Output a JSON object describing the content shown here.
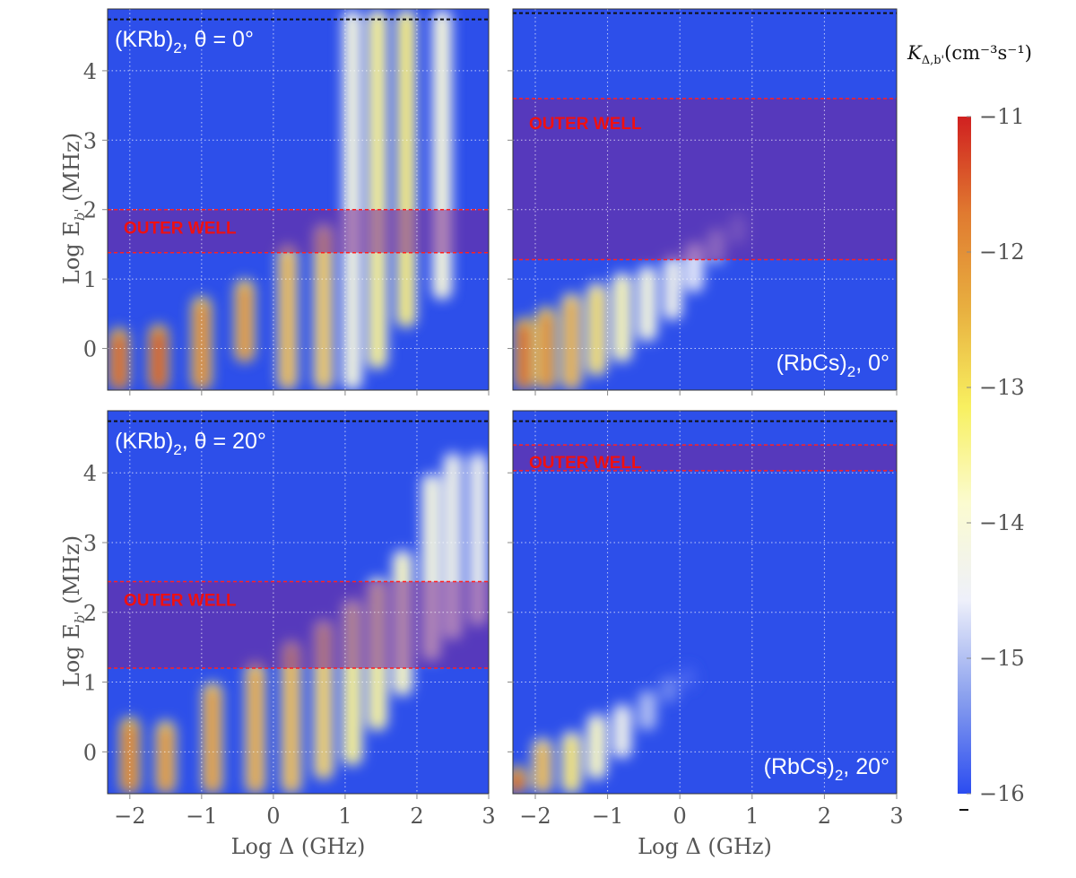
{
  "chart_data": {
    "type": "heatmap",
    "xlabel": "Log Δ (GHz)",
    "ylabel_prefix": "Log E",
    "ylabel_sub": "b'",
    "ylabel_suffix": " (MHz)",
    "xlim": [
      -2.31,
      3
    ],
    "ylim": [
      -0.6,
      4.89
    ],
    "x_ticks": [
      "-2",
      "-1",
      "0",
      "1",
      "2",
      "3"
    ],
    "x_tick_values": [
      -2,
      -1,
      0,
      1,
      2,
      3
    ],
    "y_ticks": [
      "0",
      "1",
      "2",
      "3",
      "4"
    ],
    "y_tick_values": [
      0,
      1,
      2,
      3,
      4
    ],
    "outer_well_label": "OUTER WELL",
    "colorbar": {
      "title_main": "K",
      "title_sub": "Δ,b'",
      "title_unit": "(cm⁻³s⁻¹)",
      "range": [
        -16,
        -11
      ],
      "ticks": [
        "−11",
        "−12",
        "−13",
        "−14",
        "−15",
        "−16"
      ],
      "tick_values": [
        -11,
        -12,
        -13,
        -14,
        -15,
        -16
      ],
      "colors": [
        "#2b4cf0",
        "#8aa0ee",
        "#eef0fa",
        "#fbfbd0",
        "#f8f060",
        "#e8b040",
        "#e07a30",
        "#d02020"
      ]
    },
    "background_color": "#2d4fea",
    "panels": [
      {
        "id": "krb-0",
        "label_mol": "(KRb)",
        "label_sub": "2",
        "label_rest": ", θ = 0°",
        "label_pos": "top-left",
        "threshold_line": 4.74,
        "outer_well": [
          1.38,
          2.0
        ],
        "features": [
          {
            "x": -2.15,
            "ymin": -0.6,
            "ymax": 0.3,
            "value": -11.3
          },
          {
            "x": -1.6,
            "ymin": -0.6,
            "ymax": 0.35,
            "value": -11.2
          },
          {
            "x": -1.0,
            "ymin": -0.6,
            "ymax": 0.75,
            "value": -11.7
          },
          {
            "x": -0.4,
            "ymin": -0.2,
            "ymax": 1.0,
            "value": -11.9
          },
          {
            "x": 0.2,
            "ymin": -0.6,
            "ymax": 1.5,
            "value": -12.4
          },
          {
            "x": 0.7,
            "ymin": -0.6,
            "ymax": 1.8,
            "value": -12.6
          },
          {
            "x": 1.1,
            "ymin": -0.6,
            "ymax": 4.89,
            "value": -14.0
          },
          {
            "x": 1.45,
            "ymin": -0.3,
            "ymax": 4.89,
            "value": -13.3
          },
          {
            "x": 1.85,
            "ymin": 0.3,
            "ymax": 4.89,
            "value": -13.1
          },
          {
            "x": 2.35,
            "ymin": 0.7,
            "ymax": 4.89,
            "value": -13.9
          }
        ]
      },
      {
        "id": "rbcs-0",
        "label_mol": "(RbCs)",
        "label_sub": "2",
        "label_rest": ", 0°",
        "label_pos": "bottom-right",
        "threshold_line": 4.83,
        "outer_well": [
          1.28,
          3.6
        ],
        "features": [
          {
            "x": -2.15,
            "ymin": -0.6,
            "ymax": 0.45,
            "value": -11.4
          },
          {
            "x": -1.85,
            "ymin": -0.6,
            "ymax": 0.6,
            "value": -11.8
          },
          {
            "x": -1.5,
            "ymin": -0.6,
            "ymax": 0.8,
            "value": -12.3
          },
          {
            "x": -1.15,
            "ymin": -0.4,
            "ymax": 0.95,
            "value": -12.9
          },
          {
            "x": -0.8,
            "ymin": -0.2,
            "ymax": 1.1,
            "value": -13.6
          },
          {
            "x": -0.45,
            "ymin": 0.1,
            "ymax": 1.2,
            "value": -14.0
          },
          {
            "x": -0.1,
            "ymin": 0.4,
            "ymax": 1.35,
            "value": -14.3
          },
          {
            "x": 0.2,
            "ymin": 0.8,
            "ymax": 1.55,
            "value": -14.6
          },
          {
            "x": 0.5,
            "ymin": 1.2,
            "ymax": 1.75,
            "value": -15.1
          },
          {
            "x": 0.8,
            "ymin": 1.5,
            "ymax": 1.95,
            "value": -15.5
          }
        ]
      },
      {
        "id": "krb-20",
        "label_mol": "(KRb)",
        "label_sub": "2",
        "label_rest": ", θ = 20°",
        "label_pos": "top-left",
        "threshold_line": 4.74,
        "outer_well": [
          1.2,
          2.44
        ],
        "features": [
          {
            "x": -2.0,
            "ymin": -0.6,
            "ymax": 0.5,
            "value": -11.6
          },
          {
            "x": -1.5,
            "ymin": -0.6,
            "ymax": 0.45,
            "value": -11.9
          },
          {
            "x": -0.85,
            "ymin": -0.6,
            "ymax": 1.0,
            "value": -12.0
          },
          {
            "x": -0.25,
            "ymin": -0.6,
            "ymax": 1.3,
            "value": -12.2
          },
          {
            "x": 0.25,
            "ymin": -0.6,
            "ymax": 1.6,
            "value": -12.4
          },
          {
            "x": 0.7,
            "ymin": -0.4,
            "ymax": 1.9,
            "value": -12.7
          },
          {
            "x": 1.1,
            "ymin": -0.2,
            "ymax": 2.2,
            "value": -13.3
          },
          {
            "x": 1.45,
            "ymin": 0.3,
            "ymax": 2.5,
            "value": -13.4
          },
          {
            "x": 1.8,
            "ymin": 0.8,
            "ymax": 2.9,
            "value": -13.7
          },
          {
            "x": 2.2,
            "ymin": 1.3,
            "ymax": 4.0,
            "value": -14.0
          },
          {
            "x": 2.5,
            "ymin": 1.6,
            "ymax": 4.3,
            "value": -14.2
          },
          {
            "x": 2.85,
            "ymin": 1.8,
            "ymax": 4.3,
            "value": -14.3
          }
        ]
      },
      {
        "id": "rbcs-20",
        "label_mol": "(RbCs)",
        "label_sub": "2",
        "label_rest": ", 20°",
        "label_pos": "bottom-right",
        "threshold_line": 4.74,
        "outer_well": [
          4.03,
          4.4
        ],
        "features": [
          {
            "x": -2.25,
            "ymin": -0.6,
            "ymax": -0.2,
            "value": -11.3
          },
          {
            "x": -1.9,
            "ymin": -0.6,
            "ymax": 0.2,
            "value": -12.4
          },
          {
            "x": -1.5,
            "ymin": -0.6,
            "ymax": 0.3,
            "value": -13.0
          },
          {
            "x": -1.15,
            "ymin": -0.4,
            "ymax": 0.55,
            "value": -13.7
          },
          {
            "x": -0.8,
            "ymin": -0.1,
            "ymax": 0.7,
            "value": -14.3
          },
          {
            "x": -0.45,
            "ymin": 0.3,
            "ymax": 0.9,
            "value": -15.0
          },
          {
            "x": -0.15,
            "ymin": 0.7,
            "ymax": 1.1,
            "value": -15.5
          },
          {
            "x": 0.1,
            "ymin": 0.9,
            "ymax": 1.25,
            "value": -15.8
          }
        ]
      }
    ]
  }
}
